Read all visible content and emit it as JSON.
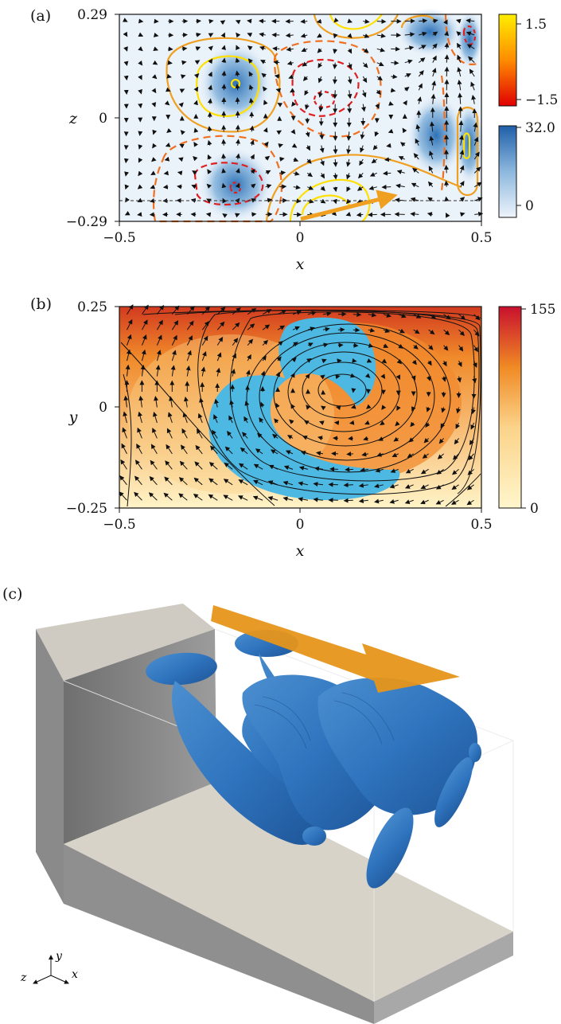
{
  "panels": {
    "a": {
      "label": "(a)",
      "xlabel": "x",
      "ylabel": "z",
      "xticks": [
        "−0.5",
        "0",
        "0.5"
      ],
      "yticks": [
        "0.29",
        "0",
        "−0.29"
      ],
      "colorbar_top": {
        "ticks": [
          "1.5",
          "−1.5"
        ],
        "colors": [
          "#ffee00",
          "#ff8c00",
          "#e00000"
        ]
      },
      "colorbar_bottom": {
        "ticks": [
          "32.0",
          "0"
        ],
        "colors": [
          "#1f5fa8",
          "#dde9f5"
        ]
      }
    },
    "b": {
      "label": "(b)",
      "xlabel": "x",
      "ylabel": "y",
      "xticks": [
        "−0.5",
        "0",
        "0.5"
      ],
      "yticks": [
        "0.25",
        "0",
        "−0.25"
      ],
      "colorbar": {
        "ticks": [
          "155",
          "0"
        ],
        "colors": [
          "#c8102e",
          "#f08a24",
          "#fff6cc"
        ]
      }
    },
    "c": {
      "label": "(c)",
      "axes": {
        "y": "y",
        "z": "z",
        "x": "x"
      }
    }
  }
}
